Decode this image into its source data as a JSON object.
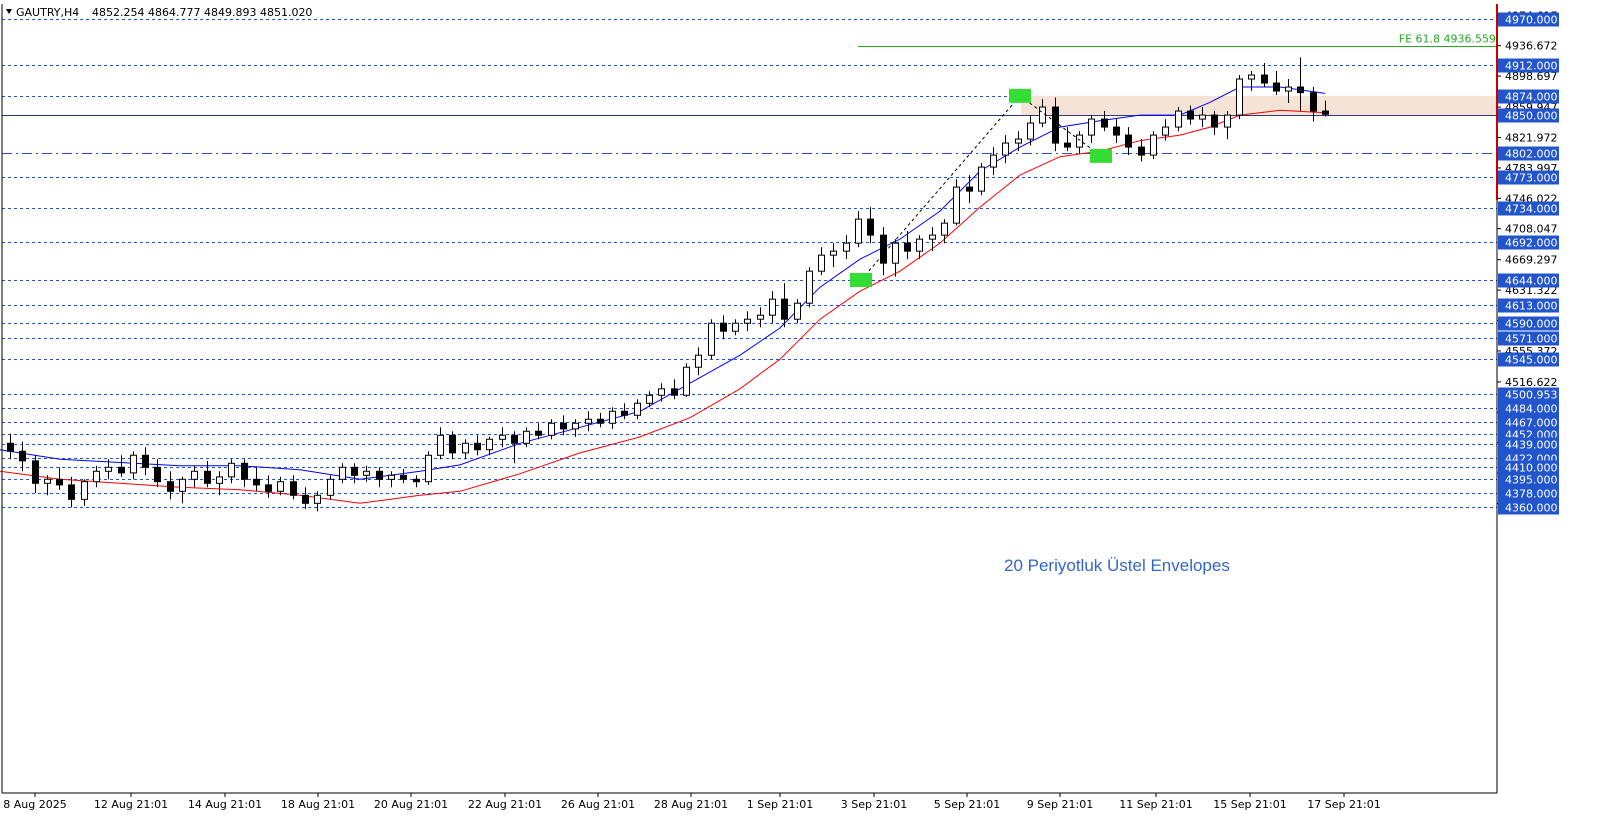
{
  "header": {
    "symbol": "GAUTRY,H4",
    "ohlc": "4852.254 4864.777 4849.893 4851.020"
  },
  "annotation": {
    "envelope_label": "20 Periyotluk Üstel Envelopes",
    "fe_label": "FE 61.8 4936.559",
    "fe_price": 4936.559
  },
  "colors": {
    "level_line": "#2255cc",
    "level_tag": "#2255cc",
    "upper_envelope": "#0000ff",
    "lower_envelope": "#ff0000",
    "fe_line": "#22aa22",
    "zone": "#f5e3d8",
    "marker": "#33dd33",
    "candle": "#000000",
    "label": "#3366cc"
  },
  "chart_data": {
    "type": "candlestick",
    "title": "GAUTRY,H4",
    "ylim": [
      4350,
      4980
    ],
    "x_tick_labels": [
      "8 Aug 2025",
      "12 Aug 21:01",
      "14 Aug 21:01",
      "18 Aug 21:01",
      "20 Aug 21:01",
      "22 Aug 21:01",
      "26 Aug 21:01",
      "28 Aug 21:01",
      "1 Sep 21:01",
      "3 Sep 21:01",
      "5 Sep 21:01",
      "9 Sep 21:01",
      "11 Sep 21:01",
      "15 Sep 21:01",
      "17 Sep 21:01"
    ],
    "y_ticks": [
      "4974.617",
      "4936.672",
      "4898.697",
      "4859.947",
      "4821.972",
      "4783.997",
      "4746.022",
      "4708.047",
      "4669.297",
      "4631.322",
      "4593.347",
      "4555.372",
      "4516.622",
      "4478.647",
      "4440.672",
      "4402.697",
      "4364.722"
    ],
    "levels": [
      "4970.000",
      "4912.000",
      "4874.000",
      "4850.000",
      "4802.000",
      "4773.000",
      "4734.000",
      "4692.000",
      "4644.000",
      "4613.000",
      "4590.000",
      "4571.000",
      "4545.000",
      "4500.953",
      "4484.000",
      "4467.000",
      "4452.000",
      "4439.000",
      "4422.000",
      "4410.000",
      "4395.000",
      "4378.000",
      "4360.000"
    ],
    "series": [
      {
        "name": "upper",
        "values": [
          [
            0,
            4432
          ],
          [
            60,
            4420
          ],
          [
            120,
            4416
          ],
          [
            180,
            4412
          ],
          [
            240,
            4412
          ],
          [
            300,
            4407
          ],
          [
            360,
            4395
          ],
          [
            420,
            4405
          ],
          [
            460,
            4413
          ],
          [
            520,
            4440
          ],
          [
            580,
            4460
          ],
          [
            640,
            4480
          ],
          [
            690,
            4515
          ],
          [
            740,
            4550
          ],
          [
            780,
            4584
          ],
          [
            820,
            4635
          ],
          [
            860,
            4670
          ],
          [
            900,
            4695
          ],
          [
            940,
            4730
          ],
          [
            980,
            4780
          ],
          [
            1020,
            4810
          ],
          [
            1060,
            4835
          ],
          [
            1100,
            4843
          ],
          [
            1140,
            4850
          ],
          [
            1180,
            4850
          ],
          [
            1210,
            4866
          ],
          [
            1240,
            4885
          ],
          [
            1280,
            4885
          ],
          [
            1325,
            4877
          ]
        ]
      },
      {
        "name": "lower",
        "values": [
          [
            0,
            4405
          ],
          [
            60,
            4395
          ],
          [
            120,
            4390
          ],
          [
            180,
            4385
          ],
          [
            240,
            4382
          ],
          [
            300,
            4375
          ],
          [
            360,
            4365
          ],
          [
            420,
            4375
          ],
          [
            460,
            4380
          ],
          [
            520,
            4402
          ],
          [
            580,
            4428
          ],
          [
            640,
            4448
          ],
          [
            690,
            4472
          ],
          [
            740,
            4508
          ],
          [
            780,
            4545
          ],
          [
            820,
            4595
          ],
          [
            860,
            4630
          ],
          [
            900,
            4655
          ],
          [
            940,
            4690
          ],
          [
            980,
            4735
          ],
          [
            1020,
            4775
          ],
          [
            1060,
            4798
          ],
          [
            1100,
            4805
          ],
          [
            1140,
            4818
          ],
          [
            1180,
            4825
          ],
          [
            1210,
            4835
          ],
          [
            1240,
            4850
          ],
          [
            1280,
            4856
          ],
          [
            1325,
            4853
          ]
        ]
      }
    ],
    "candles": [
      [
        4440,
        4452,
        4420,
        4430
      ],
      [
        4430,
        4442,
        4405,
        4418
      ],
      [
        4418,
        4425,
        4378,
        4390
      ],
      [
        4390,
        4400,
        4375,
        4395
      ],
      [
        4395,
        4410,
        4382,
        4388
      ],
      [
        4388,
        4398,
        4360,
        4370
      ],
      [
        4370,
        4395,
        4362,
        4392
      ],
      [
        4392,
        4412,
        4385,
        4405
      ],
      [
        4405,
        4420,
        4395,
        4410
      ],
      [
        4410,
        4425,
        4398,
        4403
      ],
      [
        4403,
        4430,
        4395,
        4425
      ],
      [
        4425,
        4435,
        4400,
        4410
      ],
      [
        4410,
        4420,
        4385,
        4392
      ],
      [
        4392,
        4405,
        4370,
        4380
      ],
      [
        4380,
        4398,
        4365,
        4395
      ],
      [
        4395,
        4412,
        4385,
        4405
      ],
      [
        4405,
        4418,
        4385,
        4390
      ],
      [
        4390,
        4405,
        4375,
        4398
      ],
      [
        4398,
        4420,
        4390,
        4415
      ],
      [
        4415,
        4420,
        4385,
        4395
      ],
      [
        4395,
        4410,
        4380,
        4388
      ],
      [
        4388,
        4400,
        4372,
        4380
      ],
      [
        4380,
        4398,
        4375,
        4392
      ],
      [
        4392,
        4400,
        4370,
        4375
      ],
      [
        4375,
        4385,
        4358,
        4365
      ],
      [
        4365,
        4380,
        4355,
        4375
      ],
      [
        4375,
        4400,
        4370,
        4395
      ],
      [
        4395,
        4415,
        4390,
        4410
      ],
      [
        4410,
        4415,
        4390,
        4400
      ],
      [
        4400,
        4412,
        4392,
        4405
      ],
      [
        4405,
        4410,
        4385,
        4395
      ],
      [
        4395,
        4405,
        4385,
        4400
      ],
      [
        4400,
        4408,
        4390,
        4395
      ],
      [
        4395,
        4400,
        4385,
        4392
      ],
      [
        4392,
        4430,
        4388,
        4425
      ],
      [
        4425,
        4460,
        4420,
        4450
      ],
      [
        4450,
        4455,
        4420,
        4428
      ],
      [
        4428,
        4445,
        4420,
        4440
      ],
      [
        4440,
        4450,
        4425,
        4432
      ],
      [
        4432,
        4448,
        4425,
        4445
      ],
      [
        4445,
        4460,
        4435,
        4450
      ],
      [
        4450,
        4455,
        4415,
        4440
      ],
      [
        4440,
        4460,
        4435,
        4455
      ],
      [
        4455,
        4465,
        4445,
        4450
      ],
      [
        4450,
        4470,
        4445,
        4465
      ],
      [
        4465,
        4475,
        4450,
        4458
      ],
      [
        4458,
        4470,
        4448,
        4465
      ],
      [
        4465,
        4480,
        4455,
        4470
      ],
      [
        4470,
        4478,
        4460,
        4465
      ],
      [
        4465,
        4485,
        4458,
        4480
      ],
      [
        4480,
        4490,
        4470,
        4475
      ],
      [
        4475,
        4495,
        4470,
        4490
      ],
      [
        4490,
        4505,
        4485,
        4500
      ],
      [
        4500,
        4515,
        4492,
        4508
      ],
      [
        4508,
        4520,
        4495,
        4500
      ],
      [
        4500,
        4540,
        4498,
        4535
      ],
      [
        4535,
        4560,
        4525,
        4550
      ],
      [
        4550,
        4595,
        4545,
        4590
      ],
      [
        4590,
        4600,
        4570,
        4580
      ],
      [
        4580,
        4595,
        4575,
        4590
      ],
      [
        4590,
        4605,
        4580,
        4595
      ],
      [
        4595,
        4610,
        4585,
        4600
      ],
      [
        4600,
        4630,
        4590,
        4620
      ],
      [
        4620,
        4640,
        4585,
        4595
      ],
      [
        4595,
        4620,
        4590,
        4615
      ],
      [
        4615,
        4660,
        4610,
        4655
      ],
      [
        4655,
        4685,
        4650,
        4675
      ],
      [
        4675,
        4690,
        4660,
        4680
      ],
      [
        4680,
        4700,
        4670,
        4690
      ],
      [
        4690,
        4730,
        4685,
        4720
      ],
      [
        4720,
        4735,
        4690,
        4700
      ],
      [
        4700,
        4710,
        4650,
        4665
      ],
      [
        4665,
        4695,
        4648,
        4690
      ],
      [
        4690,
        4705,
        4670,
        4680
      ],
      [
        4680,
        4700,
        4670,
        4695
      ],
      [
        4695,
        4710,
        4680,
        4700
      ],
      [
        4700,
        4720,
        4690,
        4715
      ],
      [
        4715,
        4770,
        4712,
        4760
      ],
      [
        4760,
        4775,
        4740,
        4755
      ],
      [
        4755,
        4790,
        4750,
        4785
      ],
      [
        4785,
        4810,
        4775,
        4800
      ],
      [
        4800,
        4825,
        4790,
        4815
      ],
      [
        4815,
        4830,
        4805,
        4820
      ],
      [
        4820,
        4850,
        4812,
        4840
      ],
      [
        4840,
        4870,
        4835,
        4860
      ],
      [
        4860,
        4872,
        4805,
        4815
      ],
      [
        4815,
        4835,
        4805,
        4810
      ],
      [
        4810,
        4830,
        4802,
        4825
      ],
      [
        4825,
        4850,
        4815,
        4845
      ],
      [
        4845,
        4855,
        4830,
        4835
      ],
      [
        4835,
        4845,
        4815,
        4825
      ],
      [
        4825,
        4835,
        4800,
        4810
      ],
      [
        4810,
        4820,
        4792,
        4800
      ],
      [
        4800,
        4830,
        4795,
        4825
      ],
      [
        4825,
        4845,
        4818,
        4835
      ],
      [
        4835,
        4860,
        4830,
        4855
      ],
      [
        4855,
        4862,
        4838,
        4845
      ],
      [
        4845,
        4860,
        4835,
        4850
      ],
      [
        4850,
        4855,
        4825,
        4835
      ],
      [
        4835,
        4855,
        4820,
        4850
      ],
      [
        4850,
        4900,
        4845,
        4895
      ],
      [
        4895,
        4905,
        4880,
        4900
      ],
      [
        4900,
        4915,
        4885,
        4890
      ],
      [
        4890,
        4905,
        4875,
        4880
      ],
      [
        4880,
        4895,
        4865,
        4885
      ],
      [
        4885,
        4922,
        4855,
        4878
      ],
      [
        4878,
        4885,
        4842,
        4855
      ],
      [
        4855,
        4868,
        4848,
        4851
      ]
    ]
  }
}
